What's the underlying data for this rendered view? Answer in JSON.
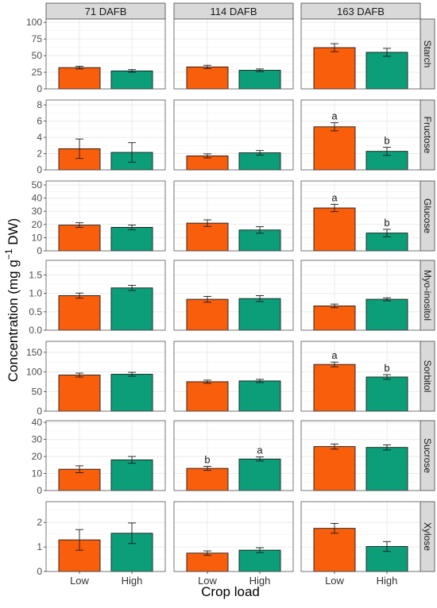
{
  "colors": {
    "low": "#F95E0B",
    "high": "#0B9E78",
    "strip_bg": "#D9D9D9",
    "grid": "#EBEBEB",
    "panel_border": "#555555"
  },
  "ylabel": "Concentration (mg  g",
  "ylabel_sup": "−1",
  "ylabel_end": " DW)",
  "chart_data": {
    "type": "bar",
    "title": "",
    "xlabel": "Crop load",
    "ylabel": "Concentration (mg g−1 DW)",
    "categories": [
      "Low",
      "High"
    ],
    "columns": [
      "71 DAFB",
      "114 DAFB",
      "163 DAFB"
    ],
    "series_colors": {
      "Low": "#F95E0B",
      "High": "#0B9E78"
    },
    "grid": true,
    "rows": [
      {
        "name": "Starch",
        "ylim": [
          0,
          105
        ],
        "ticks": [
          0,
          25,
          50,
          75,
          100
        ],
        "tick_labels": [
          "0",
          "25",
          "50",
          "75",
          "100"
        ],
        "cells": [
          {
            "values": [
              32,
              27
            ],
            "errors": [
              2,
              2
            ],
            "letters": [
              "",
              ""
            ]
          },
          {
            "values": [
              33,
              28
            ],
            "errors": [
              2.5,
              2
            ],
            "letters": [
              "",
              ""
            ]
          },
          {
            "values": [
              62,
              55
            ],
            "errors": [
              6,
              6
            ],
            "letters": [
              "",
              ""
            ]
          }
        ]
      },
      {
        "name": "Fructose",
        "ylim": [
          0,
          8.6
        ],
        "ticks": [
          0,
          2,
          4,
          6,
          8
        ],
        "tick_labels": [
          "0",
          "2",
          "4",
          "6",
          "8"
        ],
        "cells": [
          {
            "values": [
              2.6,
              2.15
            ],
            "errors": [
              1.2,
              1.2
            ],
            "letters": [
              "",
              ""
            ]
          },
          {
            "values": [
              1.72,
              2.1
            ],
            "errors": [
              0.25,
              0.28
            ],
            "letters": [
              "",
              ""
            ]
          },
          {
            "values": [
              5.3,
              2.28
            ],
            "errors": [
              0.5,
              0.5
            ],
            "letters": [
              "a",
              "b"
            ]
          }
        ]
      },
      {
        "name": "Glucose",
        "ylim": [
          0,
          53
        ],
        "ticks": [
          0,
          10,
          20,
          30,
          40,
          50
        ],
        "tick_labels": [
          "0",
          "10",
          "20",
          "30",
          "40",
          "50"
        ],
        "cells": [
          {
            "values": [
              19.5,
              17.8
            ],
            "errors": [
              1.8,
              1.8
            ],
            "letters": [
              "",
              ""
            ]
          },
          {
            "values": [
              21,
              15.8
            ],
            "errors": [
              2.5,
              2.5
            ],
            "letters": [
              "",
              ""
            ]
          },
          {
            "values": [
              32.5,
              13.5
            ],
            "errors": [
              2.8,
              2.8
            ],
            "letters": [
              "a",
              "b"
            ]
          }
        ]
      },
      {
        "name": "Myo-inositol",
        "ylim": [
          0,
          1.9
        ],
        "ticks": [
          0,
          0.5,
          1,
          1.5
        ],
        "tick_labels": [
          "0.0",
          "0.5",
          "1.0",
          "1.5"
        ],
        "cells": [
          {
            "values": [
              0.94,
              1.15
            ],
            "errors": [
              0.07,
              0.07
            ],
            "letters": [
              "",
              ""
            ]
          },
          {
            "values": [
              0.84,
              0.86
            ],
            "errors": [
              0.08,
              0.08
            ],
            "letters": [
              "",
              ""
            ]
          },
          {
            "values": [
              0.66,
              0.84
            ],
            "errors": [
              0.05,
              0.04
            ],
            "letters": [
              "",
              ""
            ]
          }
        ]
      },
      {
        "name": "Sorbitol",
        "ylim": [
          0,
          178
        ],
        "ticks": [
          0,
          50,
          100,
          150
        ],
        "tick_labels": [
          "0",
          "50",
          "100",
          "150"
        ],
        "cells": [
          {
            "values": [
              92,
              94
            ],
            "errors": [
              5,
              5
            ],
            "letters": [
              "",
              ""
            ]
          },
          {
            "values": [
              75,
              77
            ],
            "errors": [
              4,
              4
            ],
            "letters": [
              "",
              ""
            ]
          },
          {
            "values": [
              119,
              87
            ],
            "errors": [
              6,
              6
            ],
            "letters": [
              "a",
              "b"
            ]
          }
        ]
      },
      {
        "name": "Sucrose",
        "ylim": [
          0,
          41
        ],
        "ticks": [
          0,
          10,
          20,
          30,
          40
        ],
        "tick_labels": [
          "0",
          "10",
          "20",
          "30",
          "40"
        ],
        "cells": [
          {
            "values": [
              12.5,
              18
            ],
            "errors": [
              2,
              2
            ],
            "letters": [
              "",
              ""
            ]
          },
          {
            "values": [
              13,
              18.5
            ],
            "errors": [
              1.2,
              1.2
            ],
            "letters": [
              "b",
              "a"
            ]
          },
          {
            "values": [
              25.8,
              25.3
            ],
            "errors": [
              1.5,
              1.5
            ],
            "letters": [
              "",
              ""
            ]
          }
        ]
      },
      {
        "name": "Xylose",
        "ylim": [
          0,
          2.85
        ],
        "ticks": [
          0,
          1,
          2
        ],
        "tick_labels": [
          "0",
          "1",
          "2"
        ],
        "cells": [
          {
            "values": [
              1.29,
              1.56
            ],
            "errors": [
              0.42,
              0.42
            ],
            "letters": [
              "",
              ""
            ]
          },
          {
            "values": [
              0.75,
              0.87
            ],
            "errors": [
              0.09,
              0.1
            ],
            "letters": [
              "",
              ""
            ]
          },
          {
            "values": [
              1.76,
              1.02
            ],
            "errors": [
              0.2,
              0.2
            ],
            "letters": [
              "",
              ""
            ]
          }
        ]
      }
    ]
  }
}
